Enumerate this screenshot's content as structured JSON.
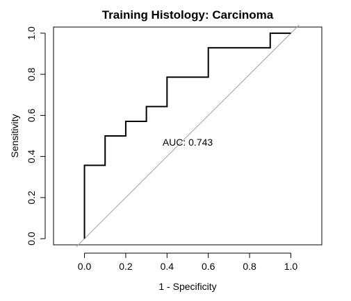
{
  "chart_data": {
    "type": "line",
    "title": "Training Histology: Carcinoma",
    "xlabel": "1 - Specificity",
    "ylabel": "Sensitivity",
    "xlim": [
      -0.15,
      1.15
    ],
    "ylim": [
      -0.03,
      1.03
    ],
    "x_ticks": [
      0.0,
      0.2,
      0.4,
      0.6,
      0.8,
      1.0
    ],
    "x_tick_labels": [
      "0.0",
      "0.2",
      "0.4",
      "0.6",
      "0.8",
      "1.0"
    ],
    "y_ticks": [
      0.0,
      0.2,
      0.4,
      0.6,
      0.8,
      1.0
    ],
    "y_tick_labels": [
      "0.0",
      "0.2",
      "0.4",
      "0.6",
      "0.8",
      "1.0"
    ],
    "grid": false,
    "series": [
      {
        "x": [
          0.0,
          0.0,
          0.1,
          0.1,
          0.2,
          0.2,
          0.3,
          0.3,
          0.4,
          0.4,
          0.6,
          0.6,
          0.9,
          0.9,
          1.0
        ],
        "y": [
          0.0,
          0.357,
          0.357,
          0.5,
          0.5,
          0.571,
          0.571,
          0.643,
          0.643,
          0.786,
          0.786,
          0.929,
          0.929,
          1.0,
          1.0
        ],
        "color": "#000000"
      }
    ],
    "reference_line": {
      "x": [
        -0.04,
        1.04
      ],
      "y": [
        -0.04,
        1.04
      ],
      "color": "#a0a0a0"
    },
    "annotation": {
      "text": "AUC: 0.743",
      "x": 0.5,
      "y": 0.47
    }
  }
}
